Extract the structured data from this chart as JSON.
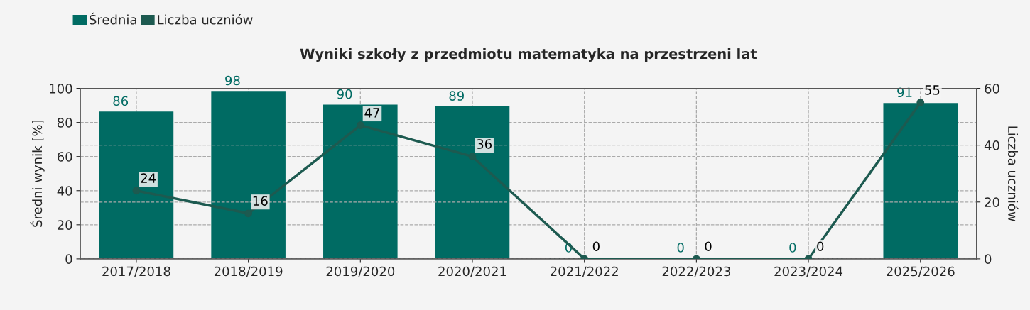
{
  "chart_data": {
    "type": "bar",
    "title": "Wyniki szkoły z przedmiotu matematyka na przestrzeni lat",
    "categories": [
      "2017/2018",
      "2018/2019",
      "2019/2020",
      "2020/2021",
      "2021/2022",
      "2022/2023",
      "2023/2024",
      "2025/2026"
    ],
    "series": [
      {
        "name": "Średnia",
        "color": "#006b63",
        "values": [
          86,
          98,
          90,
          89,
          0,
          0,
          0,
          91
        ]
      },
      {
        "name": "Liczba uczniów",
        "type": "line",
        "axis": "y2",
        "color": "#1d5a50",
        "marker": "circle",
        "values": [
          24,
          16,
          47,
          36,
          0,
          0,
          0,
          55
        ]
      }
    ],
    "ylabel": "Średni wynik [%]",
    "y2label": "Liczba uczniów",
    "ylim": [
      0,
      100
    ],
    "yticks": [
      0,
      20,
      40,
      60,
      80,
      100
    ],
    "y2lim": [
      0,
      60
    ],
    "y2ticks": [
      0,
      20,
      40,
      60
    ],
    "data_labels": true,
    "grid": true,
    "legend": "top left"
  }
}
